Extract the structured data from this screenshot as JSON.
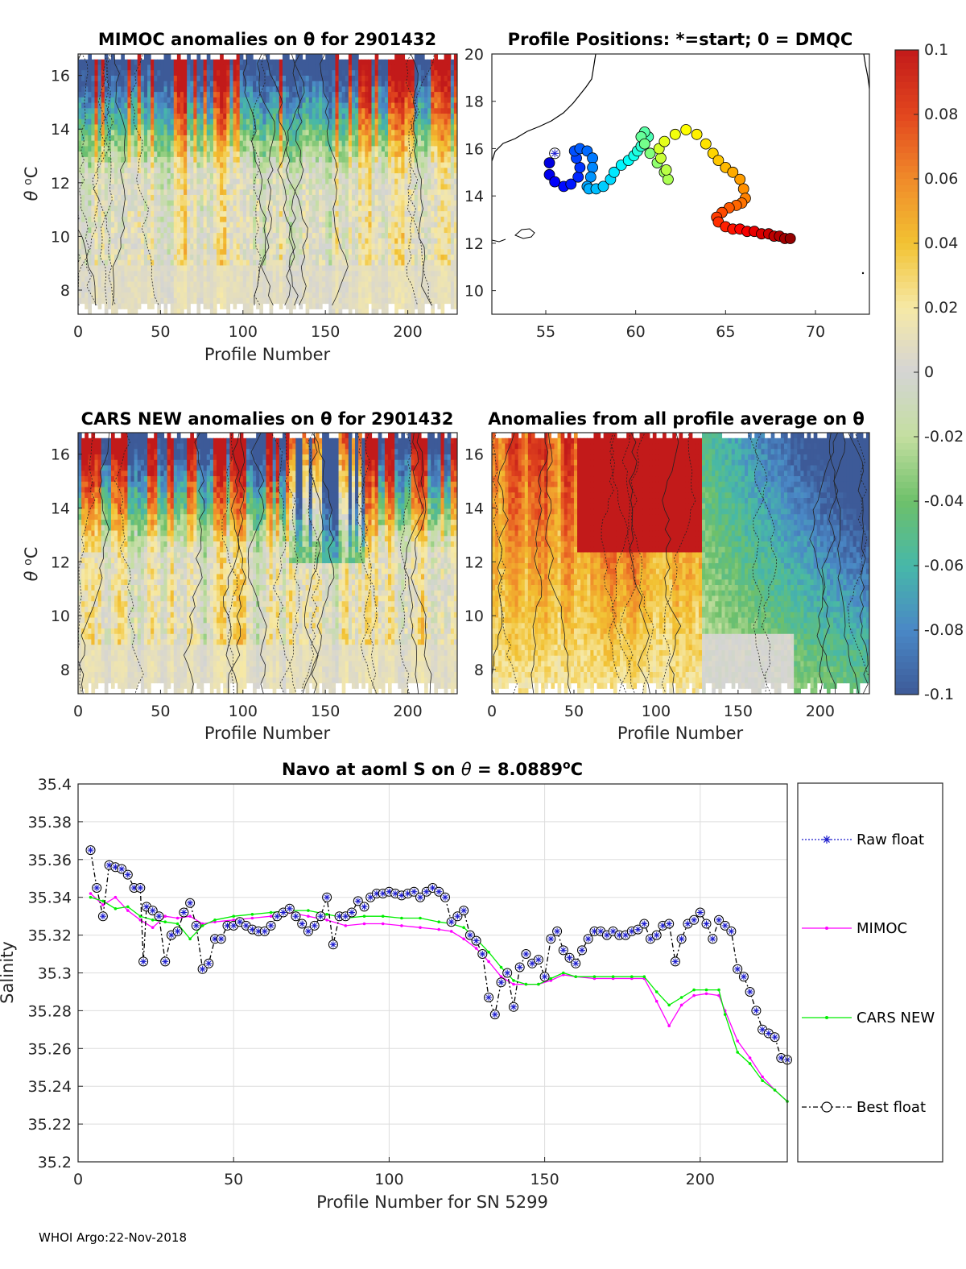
{
  "footer": "WHOI Argo:22-Nov-2018",
  "colorbar": {
    "ticks": [
      "0.1",
      "0.08",
      "0.06",
      "0.04",
      "0.02",
      "0",
      "-0.02",
      "-0.04",
      "-0.06",
      "-0.08",
      "-0.1"
    ],
    "range": [
      -0.1,
      0.1
    ],
    "colors": [
      "#3d5a98",
      "#4a88c6",
      "#47b8a8",
      "#6ec06a",
      "#c4dfa0",
      "#d4d4d4",
      "#f6e9a6",
      "#f2c232",
      "#f08a2a",
      "#e2461e",
      "#c21a1a"
    ]
  },
  "chart_data": [
    {
      "type": "heatmap",
      "title": "MIMOC anomalies on θ  for 2901432",
      "xlabel": "Profile Number",
      "ylabel": "θ °C",
      "xticks": [
        "0",
        "50",
        "100",
        "150",
        "200"
      ],
      "yticks": [
        "8",
        "10",
        "12",
        "14",
        "16"
      ],
      "xlim": [
        0,
        230
      ],
      "ylim": [
        7.1,
        16.8
      ],
      "seed": 11,
      "color_profile": "mixed_red_top"
    },
    {
      "type": "scatter",
      "title": "Profile Positions: *=start; 0 = DMQC",
      "xticks": [
        "55",
        "60",
        "65",
        "70"
      ],
      "yticks": [
        "10",
        "12",
        "14",
        "16",
        "18",
        "20"
      ],
      "xlim": [
        52,
        73
      ],
      "ylim": [
        9,
        20
      ],
      "track_lon": [
        55.5,
        55.2,
        55.2,
        55.5,
        56.0,
        56.4,
        56.8,
        56.9,
        56.7,
        56.6,
        56.9,
        57.3,
        57.6,
        57.6,
        57.5,
        57.3,
        57.4,
        57.8,
        58.2,
        58.6,
        58.8,
        59.2,
        59.6,
        59.9,
        60.1,
        60.3,
        60.5,
        60.7,
        60.5,
        60.3,
        60.5,
        60.8,
        61.2,
        61.6,
        61.8,
        61.7,
        61.4,
        61.3,
        61.6,
        62.2,
        62.8,
        63.4,
        63.9,
        64.3,
        64.6,
        65.0,
        65.4,
        65.8,
        66.0,
        66.1,
        65.9,
        65.6,
        65.2,
        64.8,
        64.5,
        64.6,
        65.0,
        65.4,
        65.8,
        66.2,
        66.6,
        67.0,
        67.4,
        67.7,
        68.0,
        68.3,
        68.6
      ],
      "track_lat": [
        15.8,
        15.4,
        14.9,
        14.6,
        14.4,
        14.5,
        14.8,
        15.2,
        15.6,
        15.9,
        16.0,
        15.9,
        15.6,
        15.2,
        14.8,
        14.4,
        14.3,
        14.3,
        14.4,
        14.7,
        15.0,
        15.3,
        15.5,
        15.7,
        15.9,
        16.1,
        16.3,
        16.5,
        16.7,
        16.5,
        16.2,
        15.8,
        15.4,
        15.0,
        14.7,
        15.1,
        15.6,
        16.0,
        16.3,
        16.6,
        16.8,
        16.6,
        16.2,
        15.8,
        15.5,
        15.2,
        15.0,
        14.7,
        14.3,
        13.9,
        13.7,
        13.6,
        13.5,
        13.3,
        13.1,
        12.9,
        12.7,
        12.6,
        12.6,
        12.5,
        12.5,
        12.4,
        12.4,
        12.3,
        12.3,
        12.2,
        12.2
      ],
      "start_marker": "*"
    },
    {
      "type": "heatmap",
      "title": "CARS NEW anomalies on θ for 2901432",
      "xlabel": "Profile Number",
      "ylabel": "θ °C",
      "xticks": [
        "0",
        "50",
        "100",
        "150",
        "200"
      ],
      "yticks": [
        "8",
        "10",
        "12",
        "14",
        "16"
      ],
      "xlim": [
        0,
        230
      ],
      "ylim": [
        7.1,
        16.8
      ],
      "seed": 29,
      "color_profile": "mixed_blue_red_top"
    },
    {
      "type": "heatmap",
      "title": "Anomalies from all profile average on θ",
      "xlabel": "Profile Number",
      "ylabel": "",
      "xticks": [
        "0",
        "50",
        "100",
        "150",
        "200"
      ],
      "yticks": [
        "8",
        "10",
        "12",
        "14",
        "16"
      ],
      "xlim": [
        0,
        230
      ],
      "ylim": [
        7.1,
        16.8
      ],
      "seed": 47,
      "color_profile": "red_then_blue"
    },
    {
      "type": "line",
      "title_prefix": "Navo at aoml S on ",
      "title_theta": "θ",
      "title_value": " = 8.0889",
      "title_sup": "o",
      "title_unit": "C",
      "xlabel": "Profile Number for SN 5299",
      "ylabel": "Salinity",
      "xlim": [
        0,
        228
      ],
      "ylim": [
        35.2,
        35.4
      ],
      "xticks": [
        "0",
        "50",
        "100",
        "150",
        "200"
      ],
      "yticks": [
        "35.4",
        "35.38",
        "35.36",
        "35.34",
        "35.32",
        "35.3",
        "35.28",
        "35.26",
        "35.24",
        "35.22",
        "35.2"
      ],
      "legend": [
        "Raw float",
        "MIMOC",
        "CARS NEW",
        "Best float"
      ],
      "series_colors": {
        "raw": "#1a1acc",
        "mimoc": "#ff00ff",
        "cars": "#00ee00",
        "best": "#000000"
      },
      "raw_float": {
        "x": [
          4,
          6,
          8,
          10,
          12,
          14,
          16,
          18,
          20,
          21,
          22,
          24,
          26,
          28,
          30,
          32,
          34,
          36,
          38,
          40,
          42,
          44,
          46,
          48,
          50,
          52,
          54,
          56,
          58,
          60,
          62,
          64,
          66,
          68,
          70,
          72,
          74,
          76,
          78,
          80,
          82,
          84,
          86,
          88,
          90,
          92,
          94,
          96,
          98,
          100,
          102,
          104,
          106,
          108,
          110,
          112,
          114,
          116,
          118,
          120,
          122,
          124,
          126,
          128,
          130,
          132,
          134,
          136,
          138,
          140,
          142,
          144,
          146,
          148,
          150,
          152,
          154,
          156,
          158,
          160,
          162,
          164,
          166,
          168,
          170,
          172,
          174,
          176,
          178,
          180,
          182,
          184,
          186,
          188,
          190,
          192,
          194,
          196,
          198,
          200,
          202,
          204,
          206,
          208,
          210,
          212,
          214,
          216,
          218,
          220,
          222,
          224,
          226,
          228
        ],
        "y": [
          35.365,
          35.345,
          35.33,
          35.357,
          35.356,
          35.355,
          35.352,
          35.345,
          35.345,
          35.306,
          35.335,
          35.333,
          35.33,
          35.306,
          35.32,
          35.322,
          35.332,
          35.337,
          35.325,
          35.302,
          35.305,
          35.318,
          35.318,
          35.325,
          35.325,
          35.327,
          35.325,
          35.323,
          35.322,
          35.322,
          35.325,
          35.33,
          35.332,
          35.334,
          35.33,
          35.326,
          35.322,
          35.325,
          35.33,
          35.34,
          35.315,
          35.33,
          35.33,
          35.332,
          35.338,
          35.335,
          35.34,
          35.342,
          35.342,
          35.343,
          35.342,
          35.341,
          35.342,
          35.343,
          35.34,
          35.343,
          35.345,
          35.343,
          35.34,
          35.327,
          35.33,
          35.333,
          35.32,
          35.317,
          35.31,
          35.287,
          35.278,
          35.295,
          35.3,
          35.282,
          35.303,
          35.31,
          35.305,
          35.307,
          35.298,
          35.318,
          35.322,
          35.312,
          35.308,
          35.305,
          35.312,
          35.318,
          35.322,
          35.322,
          35.32,
          35.322,
          35.32,
          35.32,
          35.322,
          35.323,
          35.326,
          35.318,
          35.32,
          35.325,
          35.326,
          35.306,
          35.318,
          35.326,
          35.328,
          35.332,
          35.326,
          35.318,
          35.328,
          35.325,
          35.322,
          35.302,
          35.298,
          35.29,
          35.28,
          35.27,
          35.268,
          35.266,
          35.255,
          35.254
        ]
      },
      "mimoc": {
        "x": [
          4,
          8,
          12,
          16,
          20,
          24,
          28,
          32,
          36,
          40,
          44,
          50,
          56,
          62,
          68,
          74,
          80,
          86,
          92,
          98,
          104,
          110,
          116,
          120,
          124,
          128,
          132,
          136,
          140,
          144,
          148,
          152,
          156,
          160,
          166,
          172,
          178,
          182,
          186,
          190,
          194,
          198,
          202,
          206,
          208,
          212,
          216,
          220,
          224,
          228
        ],
        "y": [
          35.342,
          35.336,
          35.34,
          35.333,
          35.328,
          35.324,
          35.33,
          35.329,
          35.33,
          35.326,
          35.327,
          35.328,
          35.329,
          35.33,
          35.332,
          35.33,
          35.328,
          35.325,
          35.326,
          35.326,
          35.325,
          35.324,
          35.323,
          35.322,
          35.318,
          35.313,
          35.306,
          35.298,
          35.294,
          35.294,
          35.294,
          35.296,
          35.299,
          35.298,
          35.297,
          35.297,
          35.297,
          35.297,
          35.285,
          35.272,
          35.283,
          35.288,
          35.289,
          35.288,
          35.28,
          35.264,
          35.255,
          35.245,
          35.238,
          35.232
        ]
      },
      "cars": {
        "x": [
          4,
          8,
          12,
          16,
          20,
          24,
          28,
          32,
          36,
          40,
          44,
          50,
          56,
          62,
          68,
          74,
          80,
          86,
          92,
          98,
          104,
          110,
          116,
          120,
          124,
          128,
          132,
          136,
          140,
          144,
          148,
          152,
          156,
          160,
          166,
          172,
          178,
          182,
          186,
          190,
          194,
          198,
          202,
          206,
          208,
          212,
          216,
          220,
          224,
          228
        ],
        "y": [
          35.34,
          35.338,
          35.334,
          35.335,
          35.33,
          35.328,
          35.327,
          35.326,
          35.318,
          35.325,
          35.328,
          35.33,
          35.331,
          35.332,
          35.333,
          35.333,
          35.331,
          35.329,
          35.33,
          35.33,
          35.329,
          35.329,
          35.327,
          35.326,
          35.324,
          35.318,
          35.311,
          35.303,
          35.296,
          35.294,
          35.294,
          35.297,
          35.3,
          35.298,
          35.298,
          35.298,
          35.298,
          35.298,
          35.29,
          35.283,
          35.287,
          35.291,
          35.291,
          35.291,
          35.278,
          35.258,
          35.252,
          35.243,
          35.238,
          35.232
        ]
      }
    }
  ]
}
